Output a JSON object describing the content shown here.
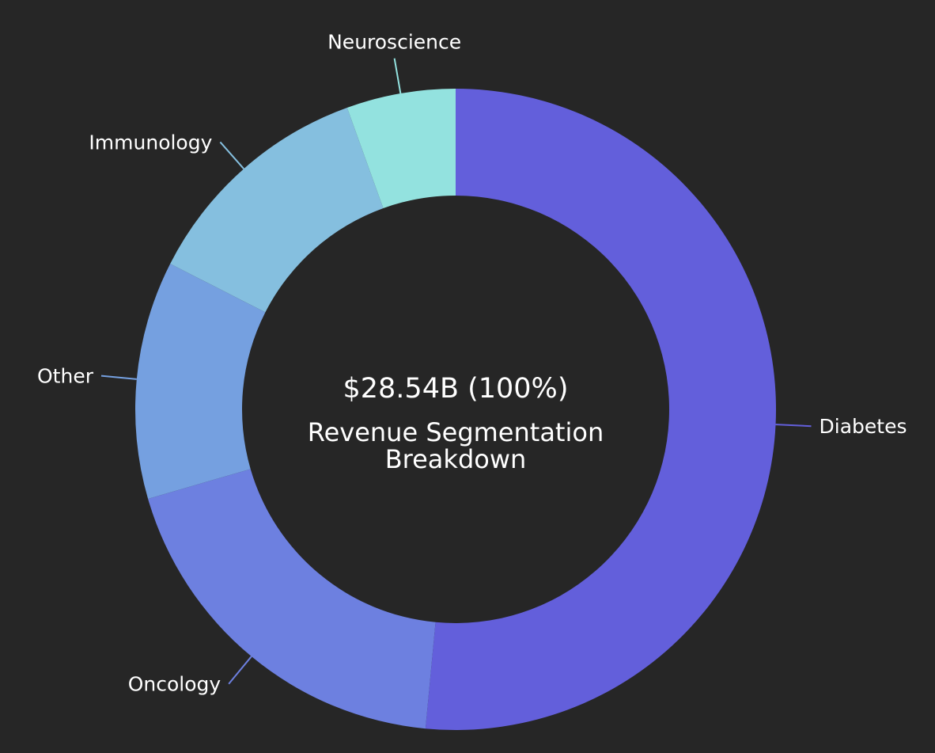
{
  "chart_data": {
    "type": "donut",
    "center": {
      "value": "$28.54B (100%)",
      "title_line1": "Revenue Segmentation",
      "title_line2": "Breakdown"
    },
    "segments": [
      {
        "name": "Diabetes",
        "share_pct": 51.5,
        "color": "#635fdb"
      },
      {
        "name": "Oncology",
        "share_pct": 19.0,
        "color": "#6d80e0"
      },
      {
        "name": "Other",
        "share_pct": 12.0,
        "color": "#75a0e0"
      },
      {
        "name": "Immunology",
        "share_pct": 12.0,
        "color": "#85bfdf"
      },
      {
        "name": "Neuroscience",
        "share_pct": 5.5,
        "color": "#93e2df"
      }
    ],
    "colors": {
      "background": "#262626",
      "text": "#ffffff"
    }
  }
}
